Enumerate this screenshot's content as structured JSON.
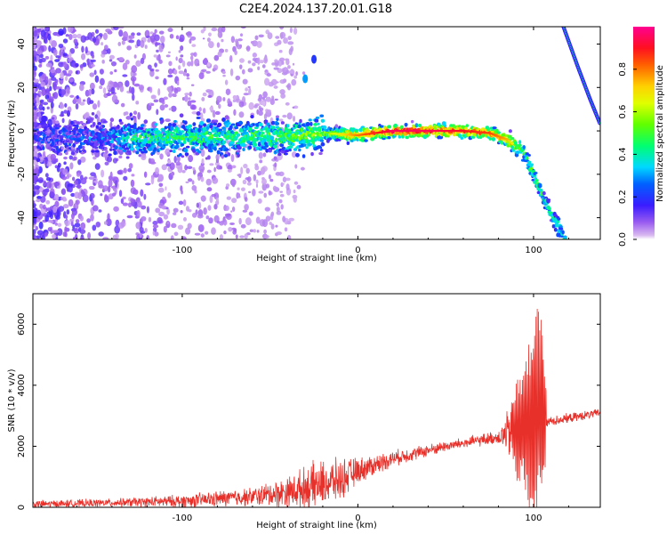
{
  "title": "C2E4.2024.137.20.01.G18",
  "chart_data": [
    {
      "type": "heatmap",
      "xlabel": "Height of straight line (km)",
      "ylabel": "Frequency (Hz)",
      "xlim": [
        -185,
        138
      ],
      "ylim": [
        -50,
        48
      ],
      "xticks": [
        -100,
        0,
        100
      ],
      "yticks": [
        -40,
        -20,
        0,
        20,
        40
      ],
      "colorbar": {
        "label": "Normalized spectral amplitude",
        "range": [
          0,
          1
        ],
        "ticks": [
          "0.0",
          "0.2",
          "0.4",
          "0.6",
          "0.8"
        ],
        "tick_values": [
          0,
          0.2,
          0.4,
          0.6,
          0.8
        ],
        "colormap": [
          "#ffffff",
          "#d8b8f0",
          "#7b1fe8",
          "#2020ff",
          "#00e0ff",
          "#00ff60",
          "#c8ff00",
          "#ffff00",
          "#ff8000",
          "#ff0000",
          "#ff00a0"
        ]
      },
      "ridge": [
        {
          "x": -185,
          "f": -3,
          "amp": 0.15
        },
        {
          "x": -140,
          "f": -3,
          "amp": 0.25
        },
        {
          "x": -130,
          "f": -3,
          "amp": 0.4
        },
        {
          "x": -100,
          "f": -3,
          "amp": 0.45
        },
        {
          "x": -60,
          "f": -2,
          "amp": 0.45
        },
        {
          "x": -40,
          "f": -3,
          "amp": 0.5
        },
        {
          "x": -20,
          "f": -1,
          "amp": 0.55
        },
        {
          "x": 0,
          "f": -2,
          "amp": 0.8
        },
        {
          "x": 20,
          "f": 0,
          "amp": 0.95
        },
        {
          "x": 40,
          "f": 0,
          "amp": 0.95
        },
        {
          "x": 60,
          "f": 0,
          "amp": 0.9
        },
        {
          "x": 75,
          "f": -1,
          "amp": 0.85
        },
        {
          "x": 85,
          "f": -4,
          "amp": 0.75
        },
        {
          "x": 95,
          "f": -10,
          "amp": 0.45
        },
        {
          "x": 100,
          "f": -20,
          "amp": 0.45
        },
        {
          "x": 108,
          "f": -35,
          "amp": 0.4
        },
        {
          "x": 118,
          "f": -50,
          "amp": 0.4
        }
      ],
      "upper_branch": [
        {
          "x": 117,
          "f": 48
        },
        {
          "x": 125,
          "f": 30
        },
        {
          "x": 132,
          "f": 15
        },
        {
          "x": 138,
          "f": 3
        }
      ],
      "blobs": [
        {
          "x": -30,
          "f": 24,
          "amp": 0.3
        },
        {
          "x": -25,
          "f": 33,
          "amp": 0.2
        }
      ]
    },
    {
      "type": "line",
      "xlabel": "Height of straight line (km)",
      "ylabel": "SNR (10 * v/v)",
      "xlim": [
        -185,
        138
      ],
      "ylim": [
        0,
        7000
      ],
      "xticks": [
        -100,
        0,
        100
      ],
      "yticks": [
        0,
        2000,
        4000,
        6000
      ],
      "series": [
        {
          "color": "#e8302a",
          "envelope": [
            {
              "x": -185,
              "base": 100,
              "noise": 150
            },
            {
              "x": -140,
              "base": 150,
              "noise": 150
            },
            {
              "x": -100,
              "base": 200,
              "noise": 250
            },
            {
              "x": -60,
              "base": 350,
              "noise": 350
            },
            {
              "x": -40,
              "base": 500,
              "noise": 600
            },
            {
              "x": -25,
              "base": 700,
              "noise": 900
            },
            {
              "x": -10,
              "base": 900,
              "noise": 800
            },
            {
              "x": 0,
              "base": 1200,
              "noise": 500
            },
            {
              "x": 20,
              "base": 1600,
              "noise": 300
            },
            {
              "x": 50,
              "base": 2000,
              "noise": 200
            },
            {
              "x": 80,
              "base": 2300,
              "noise": 250
            },
            {
              "x": 90,
              "base": 2500,
              "noise": 1500
            },
            {
              "x": 100,
              "base": 3000,
              "noise": 3500
            },
            {
              "x": 105,
              "base": 3200,
              "noise": 3600
            },
            {
              "x": 108,
              "base": 2800,
              "noise": 200
            },
            {
              "x": 138,
              "base": 3100,
              "noise": 150
            }
          ]
        }
      ]
    }
  ]
}
